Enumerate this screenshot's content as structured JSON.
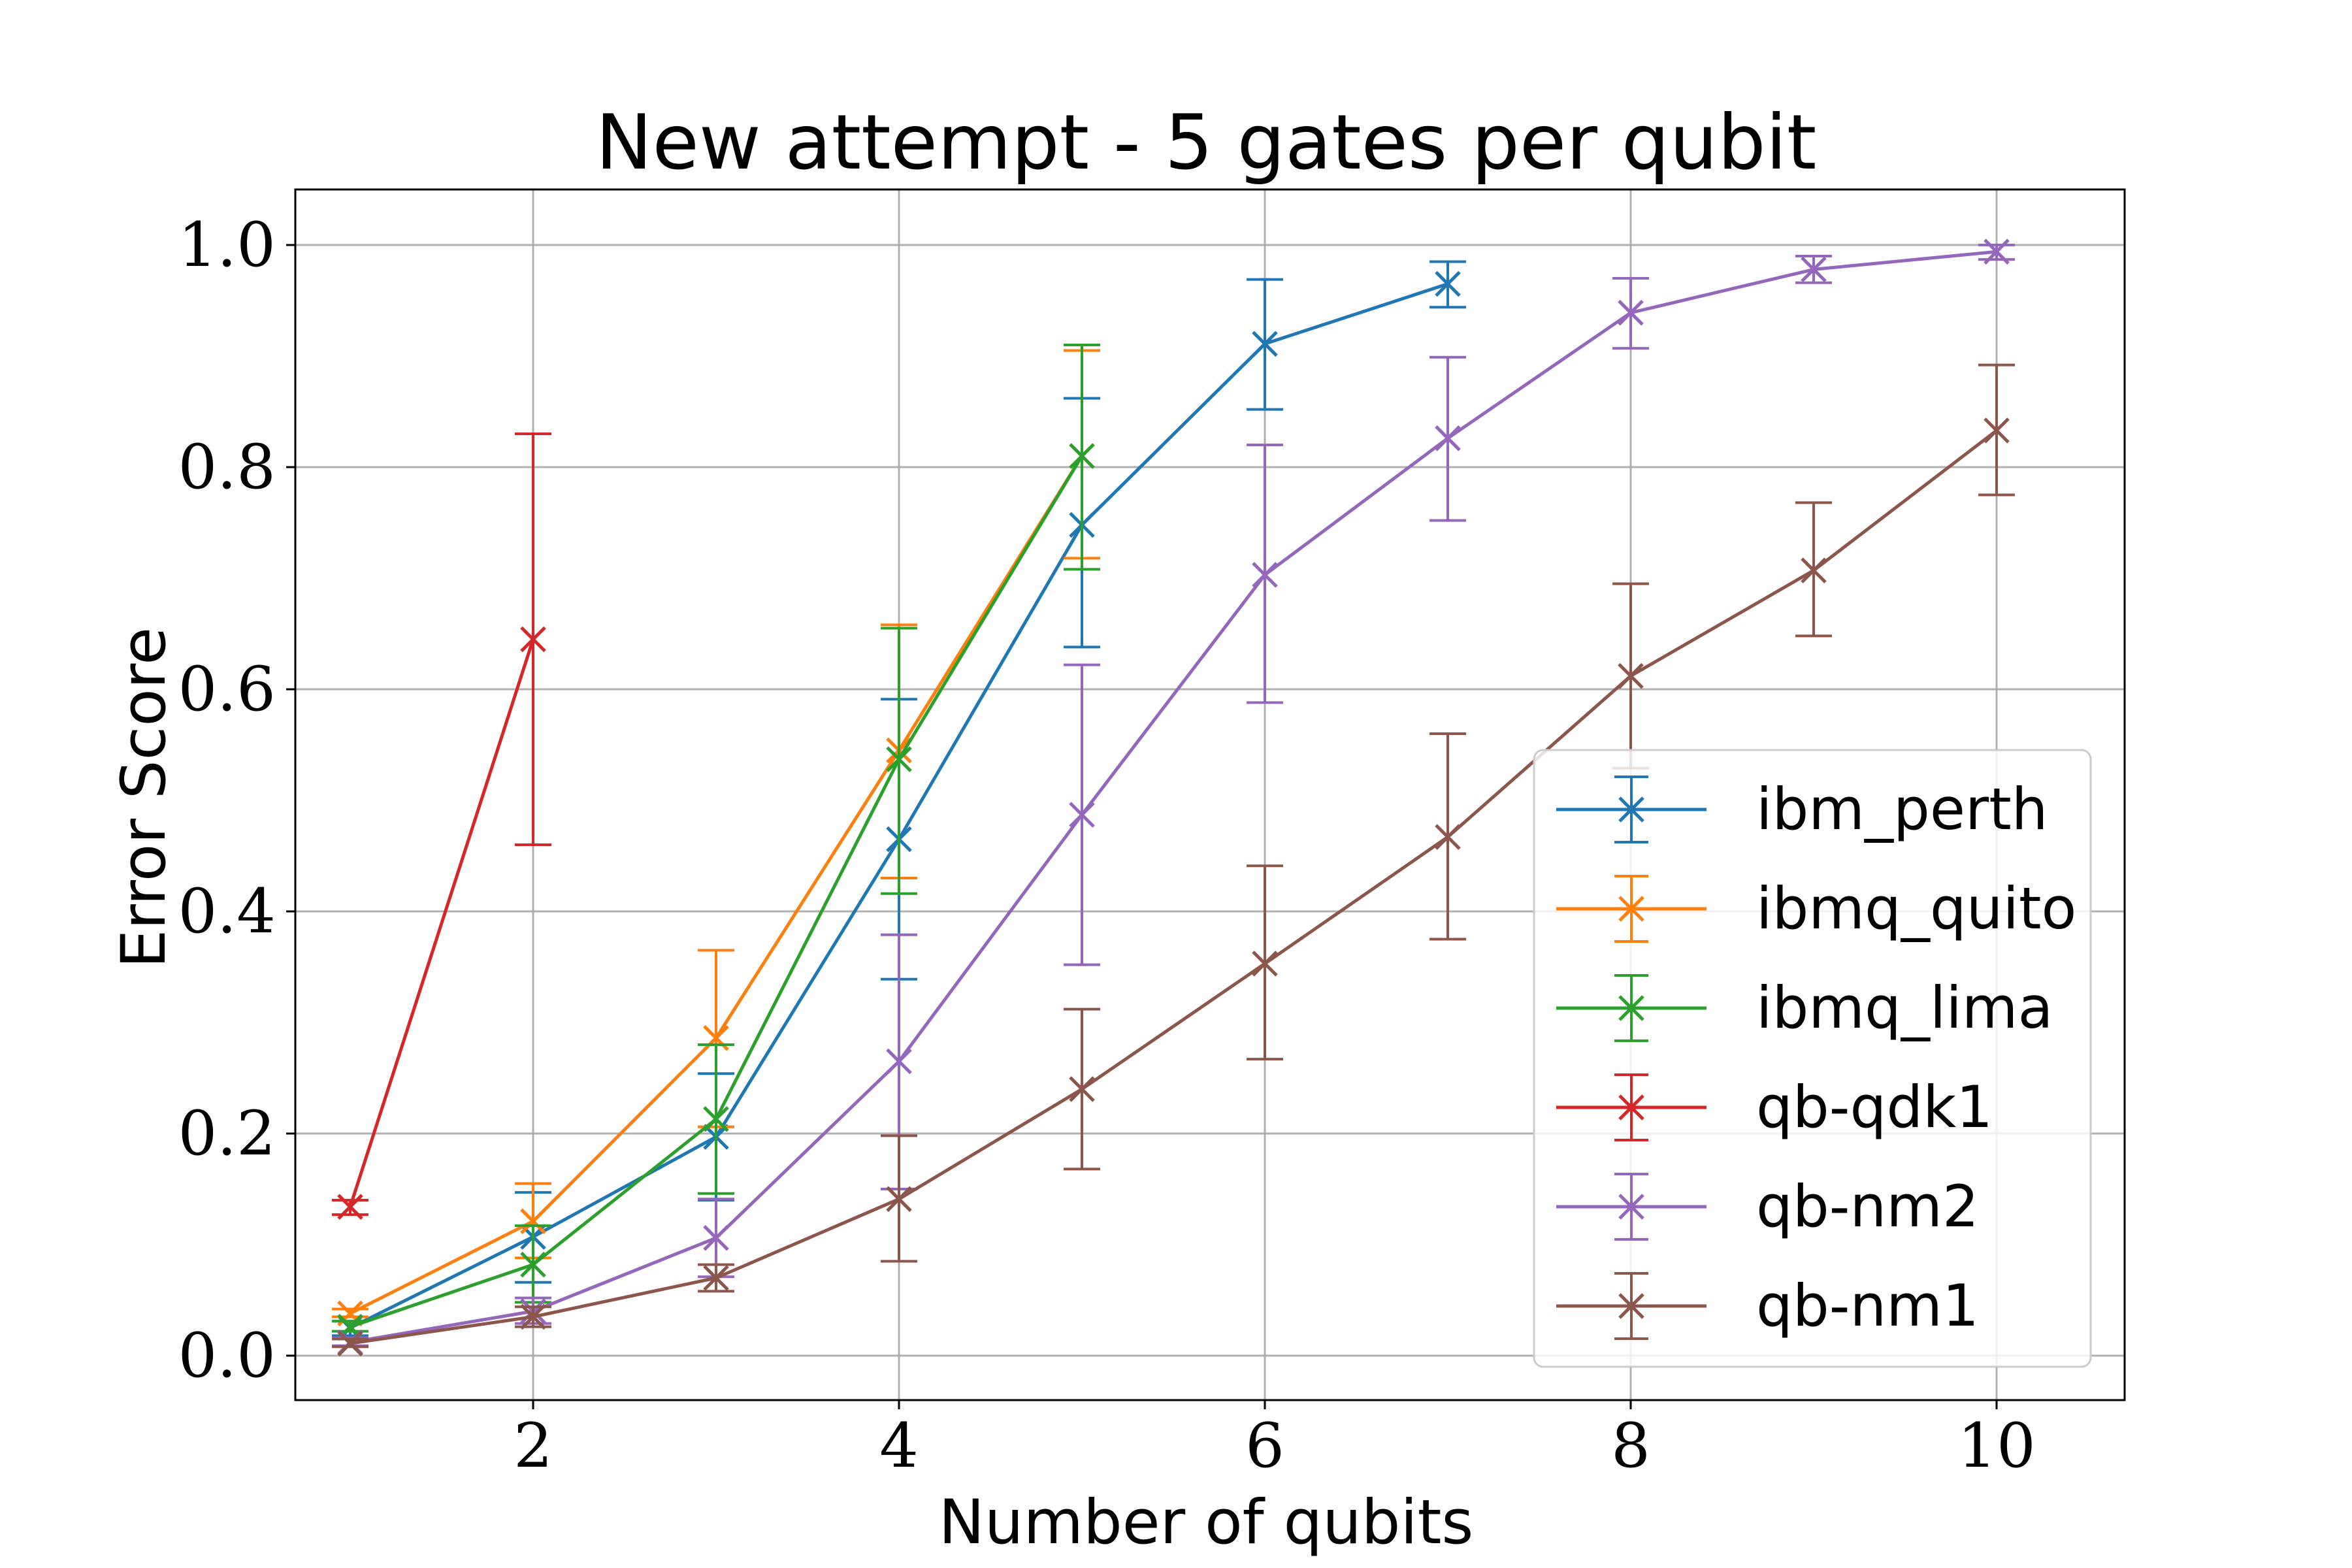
{
  "chart_data": {
    "type": "line",
    "title": "New attempt - 5 gates per qubit",
    "xlabel": "Number of qubits",
    "ylabel": "Error Score",
    "xlim": [
      0.7,
      10.7
    ],
    "ylim": [
      -0.04,
      1.05
    ],
    "xticks": [
      2,
      4,
      6,
      8,
      10
    ],
    "xtick_labels": [
      "2",
      "4",
      "6",
      "8",
      "10"
    ],
    "yticks": [
      0.0,
      0.2,
      0.4,
      0.6,
      0.8,
      1.0
    ],
    "ytick_labels": [
      "0.0",
      "0.2",
      "0.4",
      "0.6",
      "0.8",
      "1.0"
    ],
    "grid": true,
    "legend_position": "lower-right",
    "marker": "x",
    "error_bars": true,
    "series": [
      {
        "name": "ibm_perth",
        "color": "#1f77b4",
        "x": [
          1,
          2,
          3,
          4,
          5,
          6,
          7
        ],
        "y": [
          0.025,
          0.107,
          0.197,
          0.465,
          0.748,
          0.911,
          0.965
        ],
        "err_low": [
          0.018,
          0.066,
          0.14,
          0.339,
          0.638,
          0.852,
          0.944
        ],
        "err_high": [
          0.031,
          0.147,
          0.254,
          0.591,
          0.862,
          0.969,
          0.985
        ]
      },
      {
        "name": "ibmq_quito",
        "color": "#ff7f0e",
        "x": [
          1,
          2,
          3,
          4,
          5
        ],
        "y": [
          0.038,
          0.121,
          0.286,
          0.545,
          0.81
        ],
        "err_low": [
          0.035,
          0.088,
          0.206,
          0.43,
          0.718
        ],
        "err_high": [
          0.042,
          0.155,
          0.365,
          0.658,
          0.905
        ]
      },
      {
        "name": "ibmq_lima",
        "color": "#2ca02c",
        "x": [
          1,
          2,
          3,
          4,
          5
        ],
        "y": [
          0.026,
          0.082,
          0.213,
          0.537,
          0.81
        ],
        "err_low": [
          0.022,
          0.048,
          0.146,
          0.416,
          0.708
        ],
        "err_high": [
          0.031,
          0.117,
          0.28,
          0.655,
          0.91
        ]
      },
      {
        "name": "qb-qdk1",
        "color": "#d62728",
        "x": [
          1,
          2
        ],
        "y": [
          0.134,
          0.645
        ],
        "err_low": [
          0.127,
          0.46
        ],
        "err_high": [
          0.14,
          0.83
        ]
      },
      {
        "name": "qb-nm2",
        "color": "#9467bd",
        "x": [
          1,
          2,
          3,
          4,
          5,
          6,
          7,
          8,
          9,
          10
        ],
        "y": [
          0.012,
          0.04,
          0.106,
          0.265,
          0.487,
          0.703,
          0.826,
          0.939,
          0.978,
          0.994
        ],
        "err_low": [
          0.009,
          0.029,
          0.071,
          0.15,
          0.352,
          0.588,
          0.752,
          0.907,
          0.966,
          0.987
        ],
        "err_high": [
          0.016,
          0.052,
          0.141,
          0.379,
          0.622,
          0.82,
          0.899,
          0.97,
          0.99,
          1.0
        ]
      },
      {
        "name": "qb-nm1",
        "color": "#8c564b",
        "x": [
          1,
          2,
          3,
          4,
          5,
          6,
          7,
          8,
          9,
          10
        ],
        "y": [
          0.011,
          0.035,
          0.07,
          0.141,
          0.24,
          0.353,
          0.467,
          0.612,
          0.707,
          0.833
        ],
        "err_low": [
          0.008,
          0.026,
          0.058,
          0.085,
          0.168,
          0.267,
          0.375,
          0.529,
          0.648,
          0.775
        ],
        "err_high": [
          0.015,
          0.044,
          0.082,
          0.198,
          0.312,
          0.441,
          0.56,
          0.695,
          0.768,
          0.892
        ]
      }
    ]
  }
}
